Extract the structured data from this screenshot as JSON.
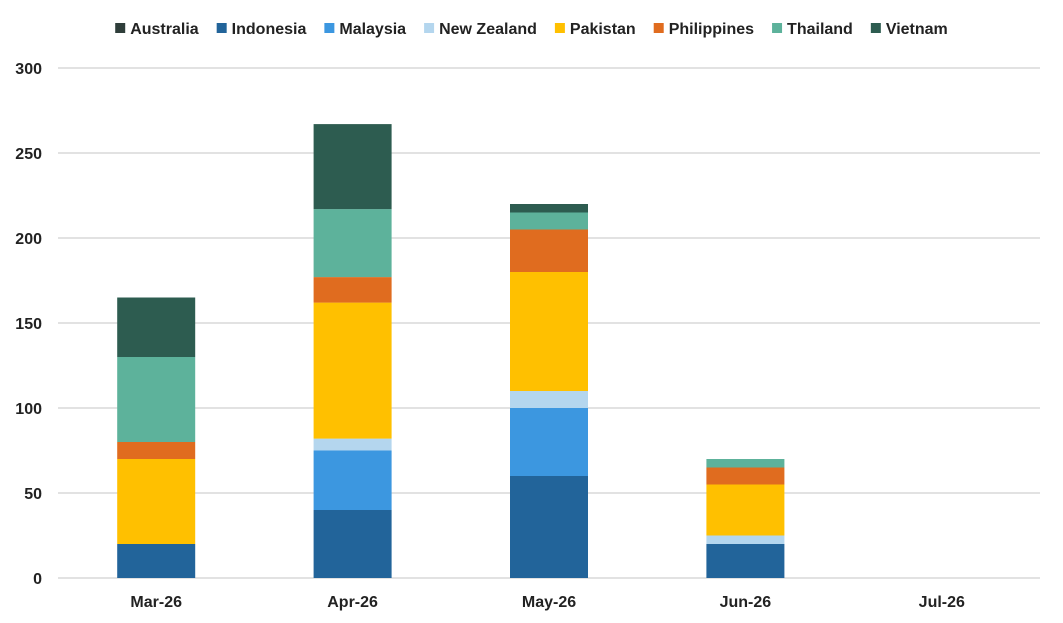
{
  "chart_data": {
    "type": "bar",
    "stacked": true,
    "categories": [
      "Mar-26",
      "Apr-26",
      "May-26",
      "Jun-26",
      "Jul-26"
    ],
    "ylim": [
      0,
      300
    ],
    "yticks": [
      0,
      50,
      100,
      150,
      200,
      250,
      300
    ],
    "grid": true,
    "legend_position": "top",
    "series": [
      {
        "name": "Australia",
        "color": "#2f3e3a",
        "values": [
          0,
          0,
          0,
          0,
          0
        ]
      },
      {
        "name": "Indonesia",
        "color": "#22649a",
        "values": [
          20,
          40,
          60,
          20,
          0
        ]
      },
      {
        "name": "Malaysia",
        "color": "#3c97e0",
        "values": [
          0,
          35,
          40,
          0,
          0
        ]
      },
      {
        "name": "New Zealand",
        "color": "#b4d6ee",
        "values": [
          0,
          7,
          10,
          5,
          0
        ]
      },
      {
        "name": "Pakistan",
        "color": "#ffc000",
        "values": [
          50,
          80,
          70,
          30,
          0
        ]
      },
      {
        "name": "Philippines",
        "color": "#e06c1f",
        "values": [
          10,
          15,
          25,
          10,
          0
        ]
      },
      {
        "name": "Thailand",
        "color": "#5db29b",
        "values": [
          50,
          40,
          10,
          5,
          0
        ]
      },
      {
        "name": "Vietnam",
        "color": "#2d5c50",
        "values": [
          35,
          50,
          5,
          0,
          0
        ]
      }
    ]
  }
}
